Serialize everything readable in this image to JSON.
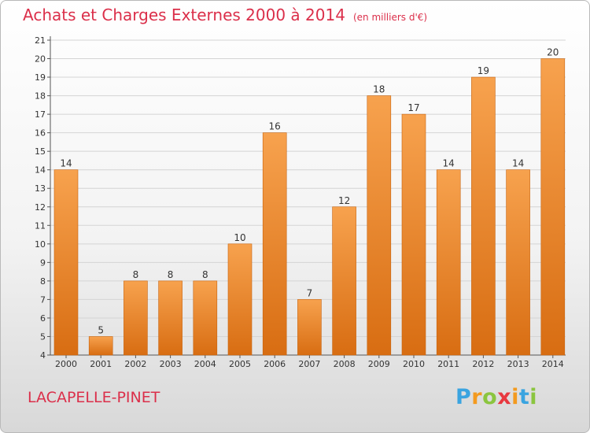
{
  "header": {
    "title": "Achats et Charges Externes 2000 à 2014",
    "unit": "(en milliers d'€)"
  },
  "footer": {
    "location": "LACAPELLE-PINET",
    "logo_letters": [
      "P",
      "r",
      "o",
      "x",
      "i",
      "t",
      "i"
    ],
    "logo_colors": [
      "#3aa4e0",
      "#f39a1f",
      "#8bc53f",
      "#e8383f",
      "#f39a1f",
      "#3aa4e0",
      "#8bc53f"
    ]
  },
  "colors": {
    "title": "#db2f4a",
    "bar_top": "#f7a24e",
    "bar_bottom": "#d86d12",
    "grid": "#d4d4d4"
  },
  "chart_data": {
    "type": "bar",
    "title": "Achats et Charges Externes 2000 à 2014",
    "ylabel": "(en milliers d'€)",
    "categories": [
      "2000",
      "2001",
      "2002",
      "2003",
      "2004",
      "2005",
      "2006",
      "2007",
      "2008",
      "2009",
      "2010",
      "2011",
      "2012",
      "2013",
      "2014"
    ],
    "values": [
      14,
      5,
      8,
      8,
      8,
      10,
      16,
      7,
      12,
      18,
      17,
      14,
      19,
      14,
      20
    ],
    "ylim": [
      4,
      21
    ],
    "yticks": [
      4,
      5,
      6,
      7,
      8,
      9,
      10,
      11,
      12,
      13,
      14,
      15,
      16,
      17,
      18,
      19,
      20,
      21
    ],
    "grid": true,
    "legend": "none"
  }
}
